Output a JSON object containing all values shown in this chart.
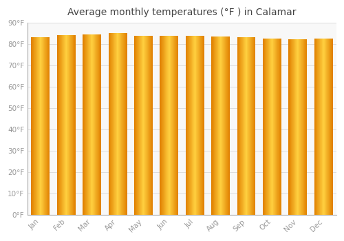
{
  "title": "Average monthly temperatures (°F ) in Calamar",
  "months": [
    "Jan",
    "Feb",
    "Mar",
    "Apr",
    "May",
    "Jun",
    "Jul",
    "Aug",
    "Sep",
    "Oct",
    "Nov",
    "Dec"
  ],
  "values": [
    83.3,
    84.2,
    84.7,
    85.1,
    84.0,
    83.8,
    84.0,
    83.7,
    83.3,
    82.6,
    82.4,
    82.7
  ],
  "bar_color_center": "#FFD040",
  "bar_color_edge": "#E08000",
  "background_color": "#FFFFFF",
  "plot_bg_color": "#F8F8F8",
  "grid_color": "#DDDDDD",
  "ylim": [
    0,
    90
  ],
  "yticks": [
    0,
    10,
    20,
    30,
    40,
    50,
    60,
    70,
    80,
    90
  ],
  "tick_label_color": "#999999",
  "title_color": "#444444",
  "title_fontsize": 10,
  "bar_width": 0.72
}
